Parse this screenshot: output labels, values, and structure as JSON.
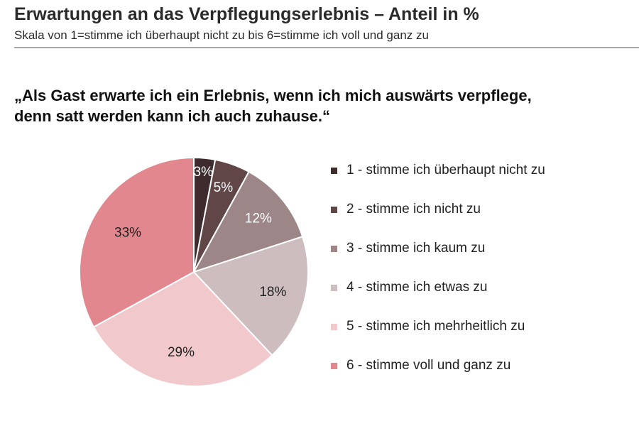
{
  "header": {
    "title": "Erwartungen an das Verpflegungserlebnis – Anteil in %",
    "subtitle": "Skala von 1=stimme ich überhaupt nicht zu bis 6=stimme ich voll und ganz zu"
  },
  "question": {
    "line1": "„Als Gast erwarte ich ein Erlebnis, wenn ich mich auswärts verpflege,",
    "line2": "denn satt werden kann ich auch zuhause.“"
  },
  "chart_data": {
    "type": "pie",
    "title": "Erwartungen an das Verpflegungserlebnis – Anteil in %",
    "start_angle": "12 o'clock",
    "direction": "clockwise",
    "legend_position": "right",
    "slices": [
      {
        "label": "1 - stimme ich überhaupt nicht zu",
        "value": 3,
        "display": "3%",
        "color": "#3d2b2d"
      },
      {
        "label": "2 - stimme ich nicht zu",
        "value": 5,
        "display": "5%",
        "color": "#614648"
      },
      {
        "label": "3 - stimme ich kaum zu",
        "value": 12,
        "display": "12%",
        "color": "#9c8687"
      },
      {
        "label": "4 - stimme ich etwas zu",
        "value": 18,
        "display": "18%",
        "color": "#cdbdbe"
      },
      {
        "label": "5 - stimme ich mehrheitlich zu",
        "value": 29,
        "display": "29%",
        "color": "#f1c9cd"
      },
      {
        "label": "6 - stimme voll und ganz zu",
        "value": 33,
        "display": "33%",
        "color": "#e2878e"
      }
    ]
  }
}
